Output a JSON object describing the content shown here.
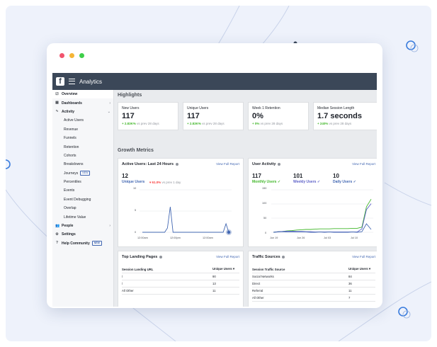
{
  "window": {
    "dot_colors": [
      "#f2546e",
      "#f5b536",
      "#3fcf4a"
    ]
  },
  "app": {
    "title": "Analytics",
    "logo": "f"
  },
  "sidebar": {
    "overview": "Overview",
    "dashboards": "Dashboards",
    "activity": "Activity",
    "sub": [
      "Active Users",
      "Revenue",
      "Funnels",
      "Retention",
      "Cohorts",
      "Breakdowns",
      "Journeys",
      "Percentiles",
      "Events",
      "Event Debugging",
      "Overlap",
      "Lifetime Value"
    ],
    "journeys_badge": "NEW",
    "people": "People",
    "settings": "Settings",
    "help": "Help Community",
    "help_badge": "NEW"
  },
  "highlights": {
    "title": "Highlights",
    "cards": [
      {
        "label": "New Users",
        "value": "117",
        "delta": "+ 2.83K%",
        "suffix": " vs prev 28 days"
      },
      {
        "label": "Unique Users",
        "value": "117",
        "delta": "+ 2.83K%",
        "suffix": " vs prev 28 days"
      },
      {
        "label": "Week 1 Retention",
        "value": "0%",
        "delta": "+ 0%",
        "suffix": " vs prev 28 days"
      },
      {
        "label": "Median Session Length",
        "value": "1.7 seconds",
        "delta": "+ 240%",
        "suffix": " vs prev 28 days"
      }
    ]
  },
  "growth": {
    "title": "Growth Metrics",
    "active": {
      "title": "Active Users: Last 24 Hours",
      "link": "View Full Report",
      "value": "12",
      "label": "Unique Users",
      "delta": "▾ 61.0%",
      "suffix": " vs prev 1 day",
      "y_ticks": [
        "10",
        "5",
        "0"
      ],
      "x_ticks": [
        "12:00am",
        "12:00pm",
        "12:00am"
      ]
    },
    "activity": {
      "title": "User Activity",
      "link": "View Full Report",
      "stats": [
        {
          "value": "117",
          "label": "Monthly Users ✓",
          "color": "#42b72a"
        },
        {
          "value": "101",
          "label": "Weekly Users ✓",
          "color": "#5b5fc7"
        },
        {
          "value": "10",
          "label": "Daily Users ✓",
          "color": "#4267b2"
        }
      ],
      "y_ticks": [
        "150",
        "100",
        "50",
        "0"
      ],
      "x_ticks": [
        "Jun 19",
        "Jun 26",
        "Jul 03",
        "Jul 10"
      ]
    }
  },
  "chart_data": [
    {
      "type": "line",
      "ylim": [
        0,
        10
      ],
      "series": [
        {
          "name": "Unique Users",
          "values": [
            0,
            0,
            0,
            0,
            0,
            0,
            0,
            0,
            0,
            1,
            6,
            0,
            0,
            0,
            0,
            0,
            0,
            0,
            0,
            0,
            0,
            0,
            0,
            0,
            0,
            0,
            0,
            0,
            0,
            0,
            2,
            0
          ]
        }
      ]
    },
    {
      "type": "line",
      "ylim": [
        0,
        150
      ],
      "series": [
        {
          "name": "Monthly Users",
          "values": [
            0,
            2,
            3,
            5,
            6,
            8,
            9,
            10,
            10,
            11,
            12,
            12,
            12,
            13,
            13,
            13,
            13,
            14,
            14,
            18,
            90,
            117
          ]
        },
        {
          "name": "Weekly Users",
          "values": [
            0,
            2,
            3,
            4,
            4,
            3,
            3,
            2,
            2,
            1,
            1,
            1,
            1,
            1,
            1,
            1,
            1,
            1,
            1,
            12,
            80,
            101
          ]
        },
        {
          "name": "Daily Users",
          "values": [
            0,
            1,
            2,
            1,
            1,
            1,
            1,
            1,
            0,
            0,
            1,
            0,
            1,
            0,
            0,
            0,
            0,
            1,
            0,
            2,
            30,
            10
          ]
        }
      ]
    }
  ],
  "landing": {
    "title": "Top Landing Pages",
    "link": "View Full Report",
    "col1": "Session Landing URL",
    "col2": "Unique Users ▾",
    "rows": [
      [
        "/",
        "90"
      ],
      [
        "/",
        "13"
      ],
      [
        "All Other",
        "11"
      ]
    ]
  },
  "traffic": {
    "title": "Traffic Sources",
    "link": "View Full Report",
    "col1": "Session Traffic Source",
    "col2": "Unique Users ▾",
    "rows": [
      [
        "Social Networks",
        "84"
      ],
      [
        "Direct",
        "36"
      ],
      [
        "Referral",
        "11"
      ],
      [
        "All Other",
        "7"
      ]
    ]
  }
}
